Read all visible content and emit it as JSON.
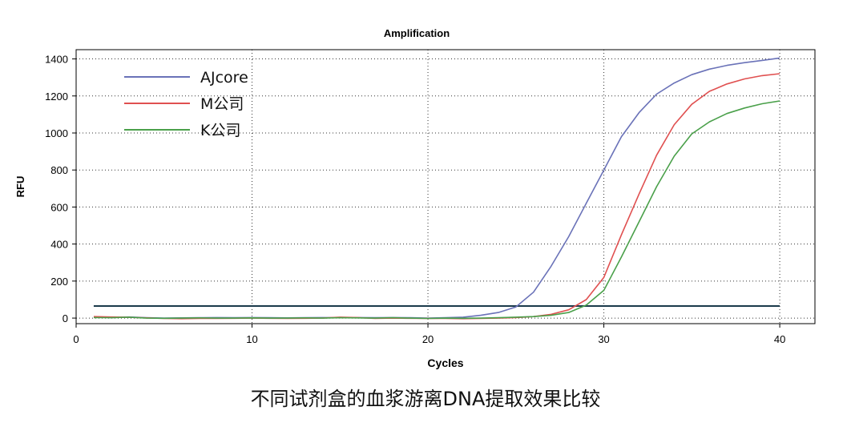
{
  "chart_data": {
    "type": "line",
    "title": "Amplification",
    "xlabel": "Cycles",
    "ylabel": "RFU",
    "xlim": [
      0,
      42
    ],
    "ylim": [
      -30,
      1450
    ],
    "xticks": [
      0,
      10,
      20,
      30,
      40
    ],
    "yticks": [
      0,
      200,
      400,
      600,
      800,
      1000,
      1200,
      1400
    ],
    "grid": true,
    "legend": "top-left",
    "threshold": {
      "value": 65,
      "color": "#1b3a4b"
    },
    "x": [
      1,
      2,
      3,
      4,
      5,
      6,
      7,
      8,
      9,
      10,
      11,
      12,
      13,
      14,
      15,
      16,
      17,
      18,
      19,
      20,
      21,
      22,
      23,
      24,
      25,
      26,
      27,
      28,
      29,
      30,
      31,
      32,
      33,
      34,
      35,
      36,
      37,
      38,
      39,
      40
    ],
    "series": [
      {
        "name": "AJcore",
        "color": "#6a72b8",
        "values": [
          5,
          3,
          6,
          2,
          0,
          1,
          2,
          3,
          2,
          3,
          2,
          1,
          2,
          3,
          2,
          3,
          2,
          3,
          2,
          0,
          2,
          5,
          15,
          30,
          60,
          140,
          280,
          440,
          620,
          800,
          980,
          1110,
          1210,
          1270,
          1315,
          1345,
          1365,
          1380,
          1392,
          1405
        ]
      },
      {
        "name": "M公司",
        "color": "#e05050",
        "values": [
          8,
          6,
          4,
          1,
          -2,
          -3,
          -2,
          -2,
          -1,
          0,
          -1,
          -2,
          -1,
          0,
          5,
          3,
          -2,
          0,
          -1,
          -2,
          -2,
          -3,
          -2,
          0,
          3,
          8,
          20,
          45,
          100,
          220,
          450,
          670,
          880,
          1045,
          1155,
          1225,
          1265,
          1292,
          1310,
          1320
        ]
      },
      {
        "name": "K公司",
        "color": "#4aa04a",
        "values": [
          3,
          2,
          5,
          0,
          -1,
          0,
          1,
          0,
          0,
          1,
          0,
          0,
          1,
          0,
          2,
          1,
          0,
          2,
          0,
          -2,
          0,
          -1,
          0,
          2,
          5,
          8,
          15,
          30,
          70,
          150,
          330,
          520,
          710,
          875,
          995,
          1060,
          1105,
          1135,
          1158,
          1173
        ]
      }
    ]
  },
  "caption": "不同试剂盒的血浆游离DNA提取效果比较"
}
